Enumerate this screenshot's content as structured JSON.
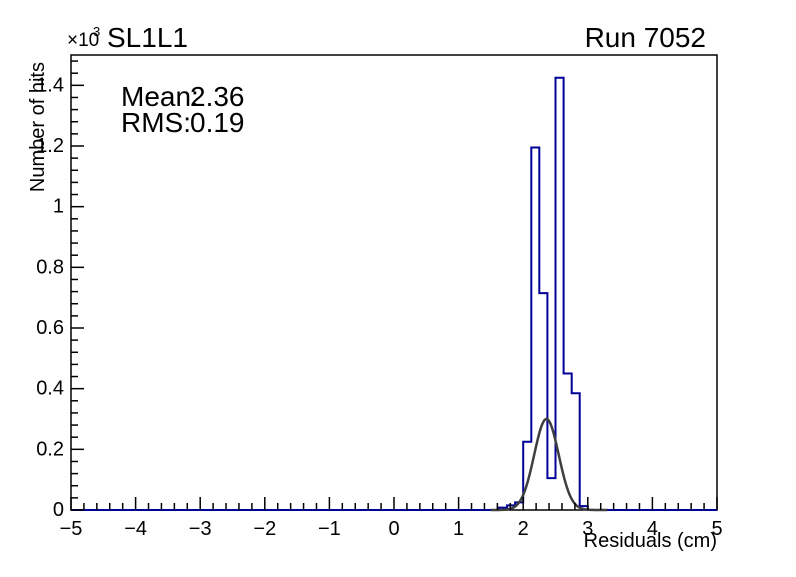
{
  "chart_data": {
    "type": "bar",
    "title": "SL1L1",
    "corner_label": "Run 7052",
    "xlabel": "Residuals (cm)",
    "ylabel": "Number of hits",
    "y_scale_exponent": {
      "base": "×10",
      "power": "3"
    },
    "annotations": {
      "mean_label": "Mean:",
      "mean_value": "2.36",
      "rms_label": "RMS:",
      "rms_value": "0.19"
    },
    "xlim": [
      -5,
      5
    ],
    "ylim": [
      0,
      1500
    ],
    "grid": false,
    "legend": "none",
    "x_minor_step": 0.2,
    "y_minor_step": 40,
    "x_ticks": [
      {
        "v": -5,
        "label": "−5"
      },
      {
        "v": -4,
        "label": "−4"
      },
      {
        "v": -3,
        "label": "−3"
      },
      {
        "v": -2,
        "label": "−2"
      },
      {
        "v": -1,
        "label": "−1"
      },
      {
        "v": 0,
        "label": "0"
      },
      {
        "v": 1,
        "label": "1"
      },
      {
        "v": 2,
        "label": "2"
      },
      {
        "v": 3,
        "label": "3"
      },
      {
        "v": 4,
        "label": "4"
      },
      {
        "v": 5,
        "label": "5"
      }
    ],
    "y_ticks": [
      {
        "v": 0,
        "label": "0"
      },
      {
        "v": 200,
        "label": "0.2"
      },
      {
        "v": 400,
        "label": "0.4"
      },
      {
        "v": 600,
        "label": "0.6"
      },
      {
        "v": 800,
        "label": "0.8"
      },
      {
        "v": 1000,
        "label": "1"
      },
      {
        "v": 1200,
        "label": "1.2"
      },
      {
        "v": 1400,
        "label": "1.4"
      }
    ],
    "bins": [
      {
        "x0": 1.625,
        "x1": 1.75,
        "y": 8
      },
      {
        "x0": 1.75,
        "x1": 1.875,
        "y": 15
      },
      {
        "x0": 1.875,
        "x1": 2.0,
        "y": 25
      },
      {
        "x0": 2.0,
        "x1": 2.125,
        "y": 225
      },
      {
        "x0": 2.125,
        "x1": 2.25,
        "y": 1195
      },
      {
        "x0": 2.25,
        "x1": 2.375,
        "y": 715
      },
      {
        "x0": 2.375,
        "x1": 2.5,
        "y": 105
      },
      {
        "x0": 2.5,
        "x1": 2.625,
        "y": 1425
      },
      {
        "x0": 2.625,
        "x1": 2.75,
        "y": 450
      },
      {
        "x0": 2.75,
        "x1": 2.875,
        "y": 385
      },
      {
        "x0": 2.875,
        "x1": 3.0,
        "y": 13
      }
    ],
    "fit": {
      "type": "gaussian",
      "mean": 2.36,
      "sigma": 0.19,
      "amplitude": 300,
      "range": [
        1.5,
        3.3
      ]
    },
    "colors": {
      "histogram": "#000099",
      "fit": "#3f3f3f",
      "axis": "#000000",
      "background": "#ffffff"
    }
  }
}
